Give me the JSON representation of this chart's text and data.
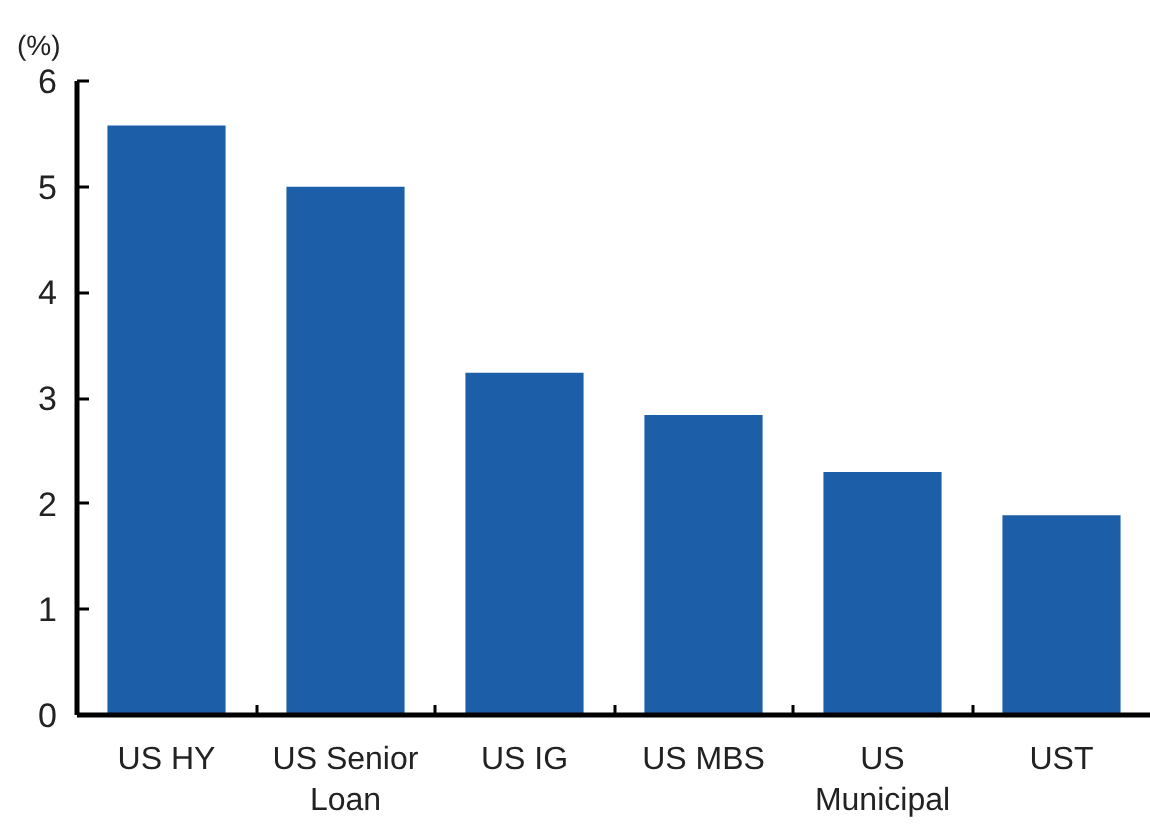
{
  "chart_data": {
    "type": "bar",
    "ylabel": "(%)",
    "categories": [
      "US HY",
      "US Senior Loan",
      "US IG",
      "US MBS",
      "US Municipal",
      "UST"
    ],
    "values": [
      5.58,
      5.0,
      3.24,
      2.84,
      2.3,
      1.89
    ],
    "color": "#1c5fa8",
    "ylim": [
      0,
      6
    ],
    "yticks": [
      0,
      1,
      2,
      3,
      4,
      5,
      6
    ],
    "grid": false
  }
}
